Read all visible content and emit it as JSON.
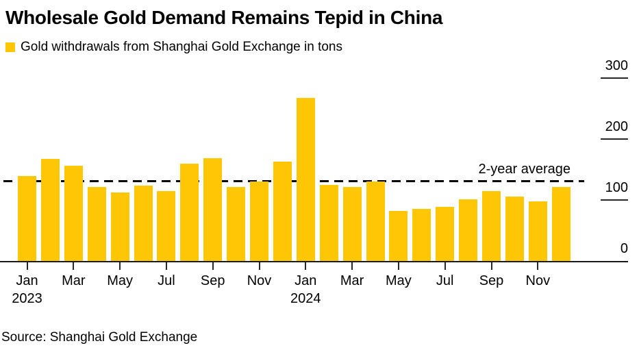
{
  "chart_data": {
    "type": "bar",
    "title": "Wholesale Gold Demand Remains Tepid in China",
    "legend": {
      "label": "Gold withdrawals from Shanghai Gold Exchange in tons",
      "swatch_color": "#FFC606",
      "position": "top-left"
    },
    "source": "Source: Shanghai Gold Exchange",
    "unit": "tons",
    "grid": "off",
    "categories": [
      "Jan 2023",
      "Feb 2023",
      "Mar 2023",
      "Apr 2023",
      "May 2023",
      "Jun 2023",
      "Jul 2023",
      "Aug 2023",
      "Sep 2023",
      "Oct 2023",
      "Nov 2023",
      "Dec 2023",
      "Jan 2024",
      "Feb 2024",
      "Mar 2024",
      "Apr 2024",
      "May 2024",
      "Jun 2024",
      "Jul 2024",
      "Aug 2024",
      "Sep 2024",
      "Oct 2024",
      "Nov 2024",
      "Dec 2024"
    ],
    "values": [
      139,
      168,
      156,
      121,
      112,
      124,
      115,
      160,
      169,
      121,
      130,
      163,
      268,
      125,
      122,
      130,
      82,
      86,
      89,
      101,
      115,
      106,
      98,
      121
    ],
    "average_line": {
      "label": "2-year average",
      "value": 131
    },
    "ylim": [
      0,
      300
    ],
    "yticks": [
      0,
      100,
      200,
      300
    ],
    "xticks": [
      {
        "label": "Jan",
        "month_index": 0
      },
      {
        "label": "Mar",
        "month_index": 2
      },
      {
        "label": "May",
        "month_index": 4
      },
      {
        "label": "Jul",
        "month_index": 6
      },
      {
        "label": "Sep",
        "month_index": 8
      },
      {
        "label": "Nov",
        "month_index": 10
      },
      {
        "label": "Jan",
        "month_index": 12
      },
      {
        "label": "Mar",
        "month_index": 14
      },
      {
        "label": "May",
        "month_index": 16
      },
      {
        "label": "Jul",
        "month_index": 18
      },
      {
        "label": "Sep",
        "month_index": 20
      },
      {
        "label": "Nov",
        "month_index": 22
      }
    ],
    "year_labels": [
      {
        "label": "2023",
        "month_index": 0
      },
      {
        "label": "2024",
        "month_index": 12
      }
    ],
    "colors": {
      "bar": "#FFC606",
      "average_line": "#000000",
      "text": "#000000",
      "axis": "#262626",
      "background": "#ffffff"
    }
  }
}
